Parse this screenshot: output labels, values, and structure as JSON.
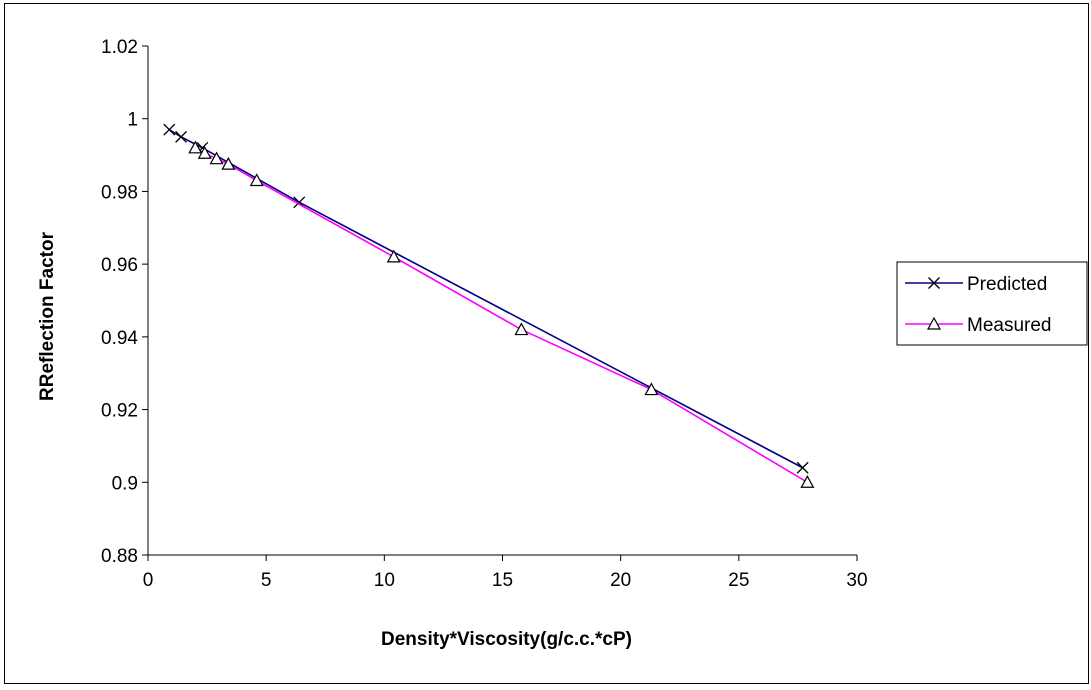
{
  "chart_data": {
    "type": "line",
    "xlabel": "Density*Viscosity(g/c.c.*cP)",
    "ylabel": "RReflection Factor",
    "xlim": [
      0,
      30
    ],
    "ylim": [
      0.88,
      1.02
    ],
    "x_ticks": [
      "0",
      "5",
      "10",
      "15",
      "20",
      "25",
      "30"
    ],
    "y_ticks": [
      "0.88",
      "0.9",
      "0.92",
      "0.94",
      "0.96",
      "0.98",
      "1",
      "1.02"
    ],
    "grid": false,
    "legend_position": "right",
    "series": [
      {
        "name": "Predicted",
        "color": "#000080",
        "marker": "x",
        "x": [
          0.9,
          1.4,
          2.3,
          6.4,
          27.7
        ],
        "y": [
          0.997,
          0.995,
          0.992,
          0.977,
          0.904
        ]
      },
      {
        "name": "Measured",
        "color": "#ff00ff",
        "marker": "triangle",
        "x": [
          2.0,
          2.4,
          2.9,
          3.4,
          4.6,
          10.4,
          15.8,
          21.3,
          27.9
        ],
        "y": [
          0.992,
          0.9905,
          0.989,
          0.9875,
          0.983,
          0.962,
          0.942,
          0.9255,
          0.9
        ]
      }
    ]
  }
}
